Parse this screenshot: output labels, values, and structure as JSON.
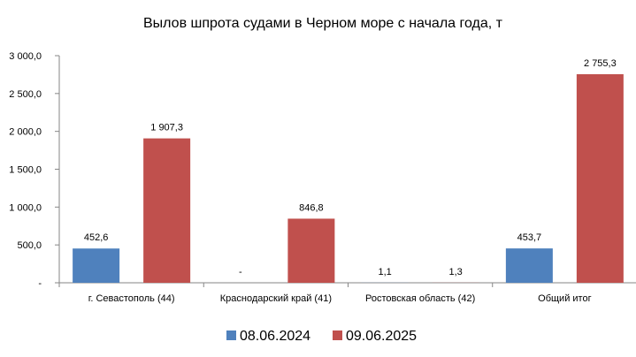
{
  "chart_data": {
    "type": "bar",
    "title": "Вылов шпрота судами в Черном море с начала  года, т",
    "xlabel": "",
    "ylabel": "",
    "categories": [
      "г. Севастополь (44)",
      "Краснодарский край (41)",
      "Ростовская область (42)",
      "Общий итог"
    ],
    "series": [
      {
        "name": "08.06.2024",
        "color": "#4f81bd",
        "values": [
          452.6,
          null,
          1.1,
          453.7
        ],
        "labels": [
          "452,6",
          "-",
          "1,1",
          "453,7"
        ]
      },
      {
        "name": "09.06.2025",
        "color": "#c0504d",
        "values": [
          1907.3,
          846.8,
          1.3,
          2755.3
        ],
        "labels": [
          "1 907,3",
          "846,8",
          "1,3",
          "2 755,3"
        ]
      }
    ],
    "ylim": [
      0,
      3000
    ],
    "yticks": [
      0,
      500,
      1000,
      1500,
      2000,
      2500,
      3000
    ],
    "ytick_labels": [
      "-",
      "500,0",
      "1 000,0",
      "1 500,0",
      "2 000,0",
      "2 500,0",
      "3 000,0"
    ],
    "grid": false,
    "legend_position": "bottom"
  }
}
